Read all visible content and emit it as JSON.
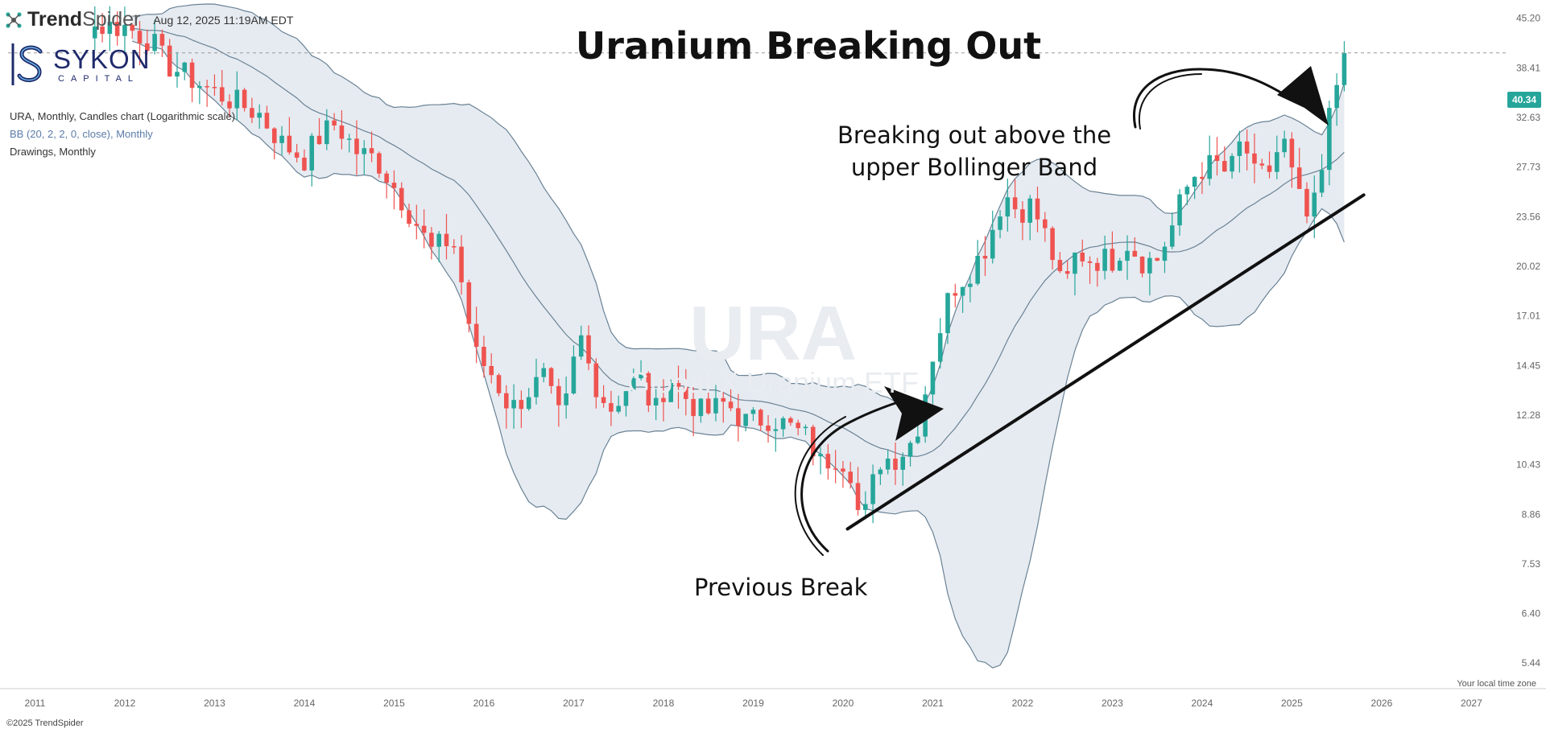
{
  "brand": {
    "name_bold": "Trend",
    "name_light": "Spider",
    "timestamp": "Aug 12, 2025 11:19AM EDT",
    "copyright": "©2025 TrendSpider"
  },
  "logo": {
    "name": "SYKON",
    "sub": "CAPITAL"
  },
  "info": {
    "line1": "URA, Monthly, Candles chart (Logarithmic scale)",
    "line2": "BB (20, 2, 2, 0, close), Monthly",
    "line3": "Drawings, Monthly"
  },
  "watermark": {
    "symbol": "URA",
    "name": "Global X Uranium ETF"
  },
  "local_time_label": "Your local time zone",
  "price_tag": "40.34",
  "annotations": {
    "top_right": "Breaking out above the upper Bollinger Band",
    "bottom": "Previous Break"
  },
  "colors": {
    "up": "#26a69a",
    "down": "#ef5350",
    "band_fill": "#e6ebf1",
    "band_line": "#6a8295"
  },
  "chart_data": {
    "type": "candlestick",
    "title": "Uranium Breaking Out",
    "y_scale": "log",
    "ylim": [
      5.0,
      48.0
    ],
    "x_range": [
      2010.7,
      2027.4
    ],
    "y_ticks": [
      "45.20",
      "38.41",
      "32.63",
      "27.73",
      "23.56",
      "20.02",
      "17.01",
      "14.45",
      "12.28",
      "10.43",
      "8.86",
      "7.53",
      "6.40",
      "5.44"
    ],
    "x_ticks": [
      "2011",
      "2012",
      "2013",
      "2014",
      "2015",
      "2016",
      "2017",
      "2018",
      "2019",
      "2020",
      "2021",
      "2022",
      "2023",
      "2024",
      "2025",
      "2026",
      "2027"
    ],
    "last_price": 40.34,
    "anchors": [
      [
        2011.75,
        44
      ],
      [
        2012.0,
        44
      ],
      [
        2012.3,
        42
      ],
      [
        2012.45,
        39
      ],
      [
        2012.75,
        37
      ],
      [
        2012.9,
        36
      ],
      [
        2013.1,
        35
      ],
      [
        2013.3,
        34
      ],
      [
        2013.5,
        33
      ],
      [
        2013.75,
        30
      ],
      [
        2014.0,
        28.5
      ],
      [
        2014.15,
        30.5
      ],
      [
        2014.35,
        32
      ],
      [
        2014.6,
        29
      ],
      [
        2014.8,
        28.5
      ],
      [
        2015.0,
        26
      ],
      [
        2015.3,
        22.5
      ],
      [
        2015.4,
        21
      ],
      [
        2015.65,
        22
      ],
      [
        2015.75,
        19
      ],
      [
        2015.9,
        15
      ],
      [
        2016.1,
        14
      ],
      [
        2016.3,
        12.5
      ],
      [
        2016.5,
        13.3
      ],
      [
        2016.7,
        14
      ],
      [
        2016.8,
        12
      ],
      [
        2016.95,
        13
      ],
      [
        2017.05,
        16.3
      ],
      [
        2017.2,
        14
      ],
      [
        2017.4,
        12.5
      ],
      [
        2017.6,
        13.5
      ],
      [
        2017.75,
        13.8
      ],
      [
        2017.9,
        12.3
      ],
      [
        2018.05,
        14
      ],
      [
        2018.2,
        13.2
      ],
      [
        2018.45,
        12.3
      ],
      [
        2018.7,
        12.8
      ],
      [
        2018.9,
        12
      ],
      [
        2019.2,
        12.2
      ],
      [
        2019.4,
        11.8
      ],
      [
        2019.6,
        11.4
      ],
      [
        2019.75,
        10.5
      ],
      [
        2019.95,
        10.8
      ],
      [
        2020.1,
        10.2
      ],
      [
        2020.2,
        8.4
      ],
      [
        2020.4,
        10.6
      ],
      [
        2020.6,
        10.7
      ],
      [
        2020.8,
        11.4
      ],
      [
        2020.9,
        13
      ],
      [
        2021.0,
        15
      ],
      [
        2021.2,
        18.5
      ],
      [
        2021.45,
        20
      ],
      [
        2021.6,
        21.5
      ],
      [
        2021.8,
        25.5
      ],
      [
        2021.95,
        24
      ],
      [
        2022.1,
        24.5
      ],
      [
        2022.3,
        21.5
      ],
      [
        2022.45,
        18.3
      ],
      [
        2022.6,
        21
      ],
      [
        2022.75,
        20.5
      ],
      [
        2023.0,
        20.5
      ],
      [
        2023.15,
        21.8
      ],
      [
        2023.35,
        20.3
      ],
      [
        2023.5,
        20.5
      ],
      [
        2023.65,
        22.5
      ],
      [
        2023.8,
        25.5
      ],
      [
        2023.95,
        27.5
      ],
      [
        2024.15,
        28
      ],
      [
        2024.3,
        27
      ],
      [
        2024.45,
        30.5
      ],
      [
        2024.6,
        26.5
      ],
      [
        2024.75,
        27.5
      ],
      [
        2024.9,
        30.5
      ],
      [
        2025.0,
        27
      ],
      [
        2025.15,
        23.3
      ],
      [
        2025.3,
        25
      ],
      [
        2025.4,
        32
      ],
      [
        2025.5,
        36.5
      ],
      [
        2025.62,
        39.5
      ]
    ]
  }
}
